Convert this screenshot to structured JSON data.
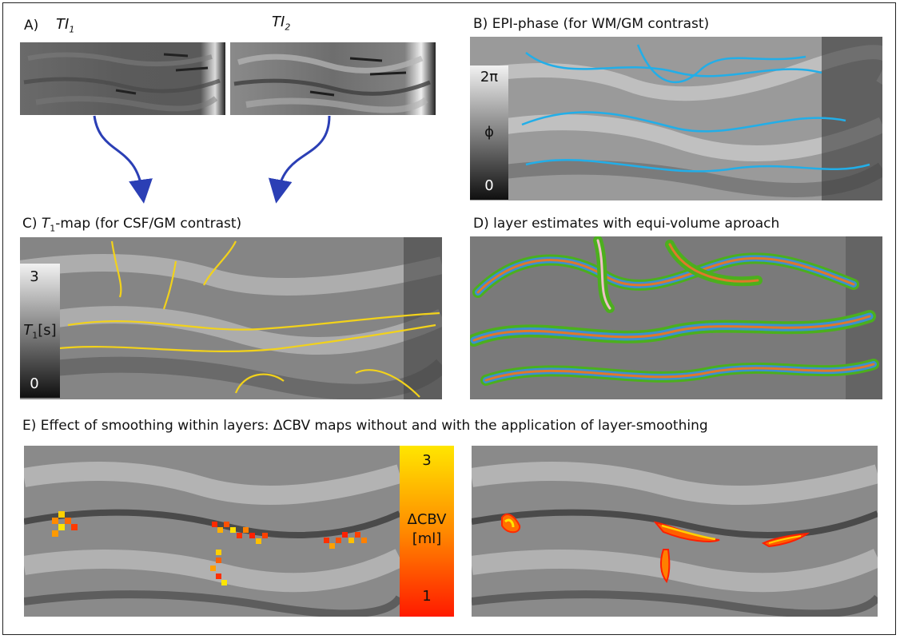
{
  "panelA": {
    "label": "A)",
    "ti1_base": "TI",
    "ti1_sub": "1",
    "ti2_base": "TI",
    "ti2_sub": "2"
  },
  "panelB": {
    "label": "B) EPI-phase (for WM/GM contrast)",
    "colorbar_top": "2π",
    "colorbar_mid": "ϕ",
    "colorbar_bottom": "0"
  },
  "panelC": {
    "label_prefix": "C) ",
    "label_t": "T",
    "label_sub": "1",
    "label_rest": "-map (for CSF/GM contrast)",
    "colorbar_top": "3",
    "colorbar_mid_t": "T",
    "colorbar_mid_sub": "1",
    "colorbar_mid_unit": "[s]",
    "colorbar_bottom": "0"
  },
  "panelD": {
    "label": "D) layer estimates with equi-volume aproach"
  },
  "panelE": {
    "label": "E) Effect of smoothing within layers: ΔCBV maps without and with the application of layer-smoothing",
    "colorbar_top": "3",
    "colorbar_mid1": "ΔCBV",
    "colorbar_mid2": "[ml]",
    "colorbar_bottom": "1"
  },
  "colors": {
    "arrow": "#2b3fb5",
    "wm_contour": "#22aee8",
    "csf_contour": "#f2d21b",
    "layer_green": "#4caf1e",
    "layer_blue": "#3c8fd0",
    "layer_orange": "#e0782a",
    "layer_pink": "#f0c0c8",
    "activation_low": "#ff1a00",
    "activation_high": "#ffe600"
  }
}
